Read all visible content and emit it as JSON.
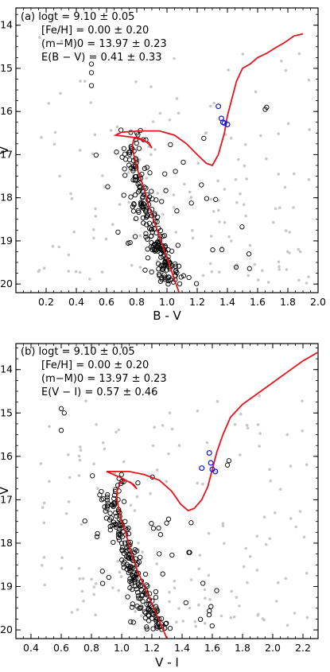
{
  "chart_data": [
    {
      "type": "scatter",
      "panel_label": "(a)",
      "annotations": [
        "(a) logt = 9.10 ± 0.05",
        "[Fe/H] = 0.00 ± 0.20",
        "(m−M)0 = 13.97 ± 0.23",
        "E(B − V) = 0.41 ± 0.33"
      ],
      "xlabel": "B - V",
      "ylabel": "V",
      "xlim": [
        0.0,
        2.0
      ],
      "ylim": [
        20.2,
        13.6
      ],
      "y_inverted": true,
      "xticks": [
        "0.2",
        "0.4",
        "0.6",
        "0.8",
        "1.0",
        "1.2",
        "1.4",
        "1.6",
        "1.8",
        "2.0"
      ],
      "yticks": [
        "14",
        "15",
        "16",
        "17",
        "18",
        "19",
        "20"
      ],
      "colors": {
        "isochrone": "#e8141b",
        "members": "#000000",
        "field": "#c8c8c8",
        "red_clump": "#1414e0"
      },
      "isochrone": {
        "x": [
          1.08,
          1.04,
          1.0,
          0.96,
          0.92,
          0.88,
          0.85,
          0.82,
          0.8,
          0.78,
          0.77,
          0.78,
          0.8,
          0.84,
          0.88,
          0.9,
          0.88,
          0.78,
          0.66,
          0.7,
          0.82,
          0.95,
          1.05,
          1.13,
          1.2,
          1.26,
          1.3,
          1.34,
          1.38,
          1.4,
          1.43,
          1.46,
          1.5,
          1.55,
          1.6,
          1.66,
          1.72,
          1.78,
          1.84,
          1.9
        ],
        "y": [
          20.2,
          19.8,
          19.4,
          19.0,
          18.6,
          18.2,
          17.8,
          17.5,
          17.3,
          17.0,
          16.8,
          16.65,
          16.6,
          16.65,
          16.75,
          16.85,
          16.72,
          16.6,
          16.55,
          16.48,
          16.45,
          16.45,
          16.55,
          16.75,
          17.0,
          17.2,
          17.25,
          17.0,
          16.5,
          16.1,
          15.7,
          15.3,
          15.0,
          14.9,
          14.75,
          14.65,
          14.52,
          14.4,
          14.25,
          14.2
        ]
      },
      "members_count": 250,
      "field_count": 150,
      "red_clump": {
        "x": [
          1.34,
          1.36,
          1.37,
          1.38,
          1.4
        ],
        "y": [
          15.88,
          16.16,
          16.25,
          16.27,
          16.3
        ]
      }
    },
    {
      "type": "scatter",
      "panel_label": "(b)",
      "annotations": [
        "(b) logt = 9.10 ± 0.05",
        "[Fe/H] = 0.00 ± 0.20",
        "(m−M)0 = 13.97 ± 0.23",
        "E(V − I) = 0.57 ± 0.46"
      ],
      "xlabel": "V - I",
      "ylabel": "V",
      "xlim": [
        0.3,
        2.3
      ],
      "ylim": [
        20.2,
        13.4
      ],
      "y_inverted": true,
      "xticks": [
        "0.4",
        "0.6",
        "0.8",
        "1.0",
        "1.2",
        "1.4",
        "1.6",
        "1.8",
        "2.0",
        "2.2"
      ],
      "yticks": [
        "14",
        "15",
        "16",
        "17",
        "18",
        "19",
        "20"
      ],
      "colors": {
        "isochrone": "#e8141b",
        "members": "#000000",
        "field": "#c8c8c8",
        "red_clump": "#1414e0"
      },
      "isochrone": {
        "x": [
          1.3,
          1.25,
          1.2,
          1.15,
          1.1,
          1.06,
          1.03,
          1.0,
          0.98,
          0.97,
          0.97,
          0.99,
          1.02,
          1.06,
          1.1,
          1.08,
          1.0,
          0.9,
          0.95,
          1.05,
          1.15,
          1.25,
          1.33,
          1.39,
          1.44,
          1.48,
          1.53,
          1.57,
          1.6,
          1.63,
          1.67,
          1.72,
          1.8,
          1.88,
          1.96,
          2.04,
          2.12,
          2.2,
          2.3
        ],
        "y": [
          20.2,
          19.8,
          19.4,
          19.0,
          18.6,
          18.2,
          17.8,
          17.5,
          17.2,
          17.0,
          16.8,
          16.6,
          16.55,
          16.6,
          16.75,
          16.65,
          16.5,
          16.35,
          16.35,
          16.35,
          16.42,
          16.55,
          16.8,
          17.1,
          17.25,
          17.2,
          17.0,
          16.7,
          16.3,
          15.9,
          15.5,
          15.1,
          14.8,
          14.6,
          14.4,
          14.2,
          14.0,
          13.8,
          13.6
        ]
      },
      "members_count": 250,
      "field_count": 150,
      "red_clump": {
        "x": [
          1.53,
          1.58,
          1.59,
          1.6,
          1.62
        ],
        "y": [
          16.27,
          15.92,
          16.15,
          16.3,
          16.35
        ]
      }
    }
  ]
}
